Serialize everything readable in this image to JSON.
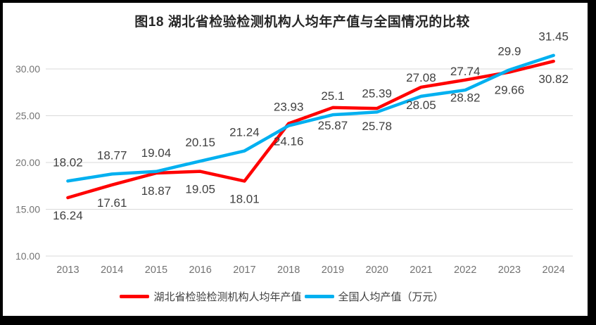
{
  "frame": {
    "border_color": "#000000",
    "background": "#ffffff"
  },
  "chart_data": {
    "type": "line",
    "title": "图18  湖北省检验检测机构人均年产值与全国情况的比较",
    "categories": [
      "2013",
      "2014",
      "2015",
      "2016",
      "2017",
      "2018",
      "2019",
      "2020",
      "2021",
      "2022",
      "2023",
      "2024"
    ],
    "series": [
      {
        "id": "hubei",
        "name": "湖北省检验检测机构人均年产值",
        "color": "#FF0000",
        "values": [
          16.24,
          17.61,
          18.87,
          19.05,
          18.01,
          24.16,
          25.87,
          25.78,
          28.05,
          28.82,
          29.66,
          30.82
        ],
        "labels": [
          "16.24",
          "17.61",
          "18.87",
          "19.05",
          "18.01",
          "24.16",
          "25.87",
          "25.78",
          "28.05",
          "28.82",
          "29.66",
          "30.82"
        ],
        "label_position": "below"
      },
      {
        "id": "national",
        "name": "全国人均产值（万元）",
        "color": "#00B0F0",
        "values": [
          18.02,
          18.77,
          19.04,
          20.15,
          21.24,
          23.93,
          25.1,
          25.39,
          27.08,
          27.74,
          29.9,
          31.45
        ],
        "labels": [
          "18.02",
          "18.77",
          "19.04",
          "20.15",
          "21.24",
          "23.93",
          "25.1",
          "25.39",
          "27.08",
          "27.74",
          "29.9",
          "31.45"
        ],
        "label_position": "above"
      }
    ],
    "xlabel": "",
    "ylabel": "",
    "ylim": [
      10,
      32.5
    ],
    "yticks": [
      10,
      15,
      20,
      25,
      30
    ],
    "ytick_labels": [
      "10.00",
      "15.00",
      "20.00",
      "25.00",
      "30.00"
    ],
    "grid": true,
    "legend_position": "bottom",
    "axis_label_color": "#737373",
    "data_label_color": "#404040",
    "gridline_color": "#D9D9D9",
    "title_color": "#262626"
  }
}
